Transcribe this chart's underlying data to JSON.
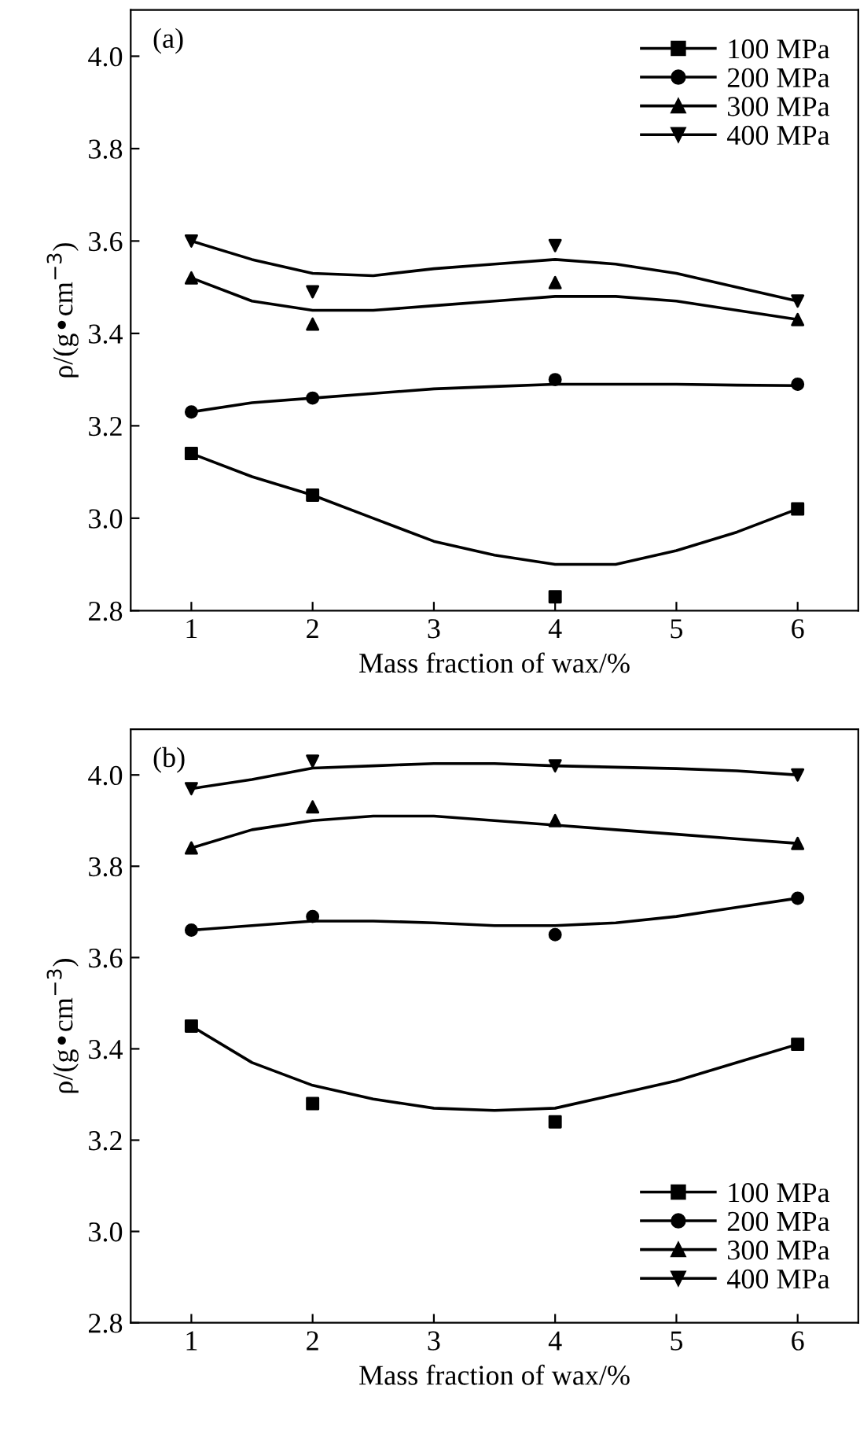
{
  "chart_data": [
    {
      "type": "scatter",
      "xlabel": "Mass fraction of wax/%",
      "ylabel": "ρ/(g•cm$^{−3}$)",
      "annotations": [
        "(a)"
      ],
      "xlim": [
        0.5,
        6.5
      ],
      "xticks": [
        1,
        2,
        3,
        4,
        5,
        6
      ],
      "ylim": [
        2.8,
        4.1
      ],
      "yticks": [
        {
          "value": 2.8,
          "label": "2.8"
        },
        {
          "value": 3.0,
          "label": "3.0"
        },
        {
          "value": 3.2,
          "label": "3.2"
        },
        {
          "value": 3.4,
          "label": "3.4"
        },
        {
          "value": 3.6,
          "label": "3.6"
        },
        {
          "value": 3.8,
          "label": "3.8"
        },
        {
          "value": 4.0,
          "label": "4.0"
        }
      ],
      "grid": false,
      "legend": "top right",
      "series": [
        {
          "type": "scatter",
          "name": "100 MPa",
          "color": "#000000",
          "marker": "square",
          "x": [
            1,
            2,
            4,
            6
          ],
          "values": [
            3.14,
            3.05,
            2.83,
            3.02
          ]
        },
        {
          "type": "scatter",
          "name": "200 MPa",
          "color": "#000000",
          "marker": "circle",
          "x": [
            1,
            2,
            4,
            6
          ],
          "values": [
            3.23,
            3.26,
            3.3,
            3.29
          ]
        },
        {
          "type": "scatter",
          "name": "300 MPa",
          "color": "#000000",
          "marker": "triangle",
          "x": [
            1,
            2,
            4,
            6
          ],
          "values": [
            3.52,
            3.42,
            3.51,
            3.43
          ]
        },
        {
          "type": "scatter",
          "name": "400 MPa",
          "color": "#000000",
          "marker": "triangle_down",
          "x": [
            1,
            2,
            4,
            6
          ],
          "values": [
            3.6,
            3.49,
            3.59,
            3.47
          ]
        },
        {
          "type": "line",
          "color": "#000000",
          "line_style": "solid",
          "x": [
            1,
            1.5,
            2,
            2.5,
            3,
            3.5,
            4,
            4.5,
            5,
            5.5,
            6
          ],
          "values": [
            3.14,
            3.09,
            3.05,
            3.0,
            2.95,
            2.92,
            2.9,
            2.9,
            2.93,
            2.97,
            3.02
          ]
        },
        {
          "type": "line",
          "color": "#000000",
          "line_style": "solid",
          "x": [
            1,
            1.5,
            2,
            2.5,
            3,
            3.5,
            4,
            4.5,
            5,
            5.5,
            6
          ],
          "values": [
            3.23,
            3.25,
            3.26,
            3.27,
            3.28,
            3.285,
            3.29,
            3.29,
            3.29,
            3.288,
            3.287
          ]
        },
        {
          "type": "line",
          "color": "#000000",
          "line_style": "solid",
          "x": [
            1,
            1.5,
            2,
            2.5,
            3,
            3.5,
            4,
            4.5,
            5,
            5.5,
            6
          ],
          "values": [
            3.52,
            3.47,
            3.45,
            3.45,
            3.46,
            3.47,
            3.48,
            3.48,
            3.47,
            3.45,
            3.43
          ]
        },
        {
          "type": "line",
          "color": "#000000",
          "line_style": "solid",
          "x": [
            1,
            1.5,
            2,
            2.5,
            3,
            3.5,
            4,
            4.5,
            5,
            5.5,
            6
          ],
          "values": [
            3.6,
            3.56,
            3.53,
            3.525,
            3.54,
            3.55,
            3.56,
            3.55,
            3.53,
            3.5,
            3.47
          ]
        }
      ]
    },
    {
      "type": "scatter",
      "xlabel": "Mass fraction of wax/%",
      "ylabel": "ρ/(g•cm$^{−3}$)",
      "annotations": [
        "(b)"
      ],
      "xlim": [
        0.5,
        6.5
      ],
      "xticks": [
        1,
        2,
        3,
        4,
        5,
        6
      ],
      "ylim": [
        2.8,
        4.1
      ],
      "yticks": [
        {
          "value": 2.8,
          "label": "2.8"
        },
        {
          "value": 3.0,
          "label": "3.0"
        },
        {
          "value": 3.2,
          "label": "3.2"
        },
        {
          "value": 3.4,
          "label": "3.4"
        },
        {
          "value": 3.6,
          "label": "3.6"
        },
        {
          "value": 3.8,
          "label": "3.8"
        },
        {
          "value": 4.0,
          "label": "4.0"
        }
      ],
      "grid": false,
      "legend": "bottom right",
      "series": [
        {
          "type": "scatter",
          "name": "100 MPa",
          "color": "#000000",
          "marker": "square",
          "x": [
            1,
            2,
            4,
            6
          ],
          "values": [
            3.45,
            3.28,
            3.24,
            3.41
          ]
        },
        {
          "type": "scatter",
          "name": "200 MPa",
          "color": "#000000",
          "marker": "circle",
          "x": [
            1,
            2,
            4,
            6
          ],
          "values": [
            3.66,
            3.69,
            3.65,
            3.73
          ]
        },
        {
          "type": "scatter",
          "name": "300 MPa",
          "color": "#000000",
          "marker": "triangle",
          "x": [
            1,
            2,
            4,
            6
          ],
          "values": [
            3.84,
            3.93,
            3.9,
            3.85
          ]
        },
        {
          "type": "scatter",
          "name": "400 MPa",
          "color": "#000000",
          "marker": "triangle_down",
          "x": [
            1,
            2,
            4,
            6
          ],
          "values": [
            3.97,
            4.03,
            4.02,
            4.0
          ]
        },
        {
          "type": "line",
          "color": "#000000",
          "line_style": "solid",
          "x": [
            1,
            1.5,
            2,
            2.5,
            3,
            3.5,
            4,
            4.5,
            5,
            5.5,
            6
          ],
          "values": [
            3.45,
            3.37,
            3.32,
            3.29,
            3.27,
            3.265,
            3.27,
            3.3,
            3.33,
            3.37,
            3.41
          ]
        },
        {
          "type": "line",
          "color": "#000000",
          "line_style": "solid",
          "x": [
            1,
            1.5,
            2,
            2.5,
            3,
            3.5,
            4,
            4.5,
            5,
            5.5,
            6
          ],
          "values": [
            3.66,
            3.67,
            3.68,
            3.68,
            3.676,
            3.67,
            3.67,
            3.676,
            3.69,
            3.71,
            3.73
          ]
        },
        {
          "type": "line",
          "color": "#000000",
          "line_style": "solid",
          "x": [
            1,
            1.5,
            2,
            2.5,
            3,
            3.5,
            4,
            4.5,
            5,
            5.5,
            6
          ],
          "values": [
            3.84,
            3.88,
            3.9,
            3.91,
            3.91,
            3.9,
            3.89,
            3.88,
            3.87,
            3.86,
            3.85
          ]
        },
        {
          "type": "line",
          "color": "#000000",
          "line_style": "solid",
          "x": [
            1,
            1.5,
            2,
            2.5,
            3,
            3.5,
            4,
            4.5,
            5,
            5.5,
            6
          ],
          "values": [
            3.97,
            3.99,
            4.015,
            4.02,
            4.025,
            4.025,
            4.02,
            4.017,
            4.014,
            4.009,
            4.0
          ]
        }
      ]
    }
  ]
}
